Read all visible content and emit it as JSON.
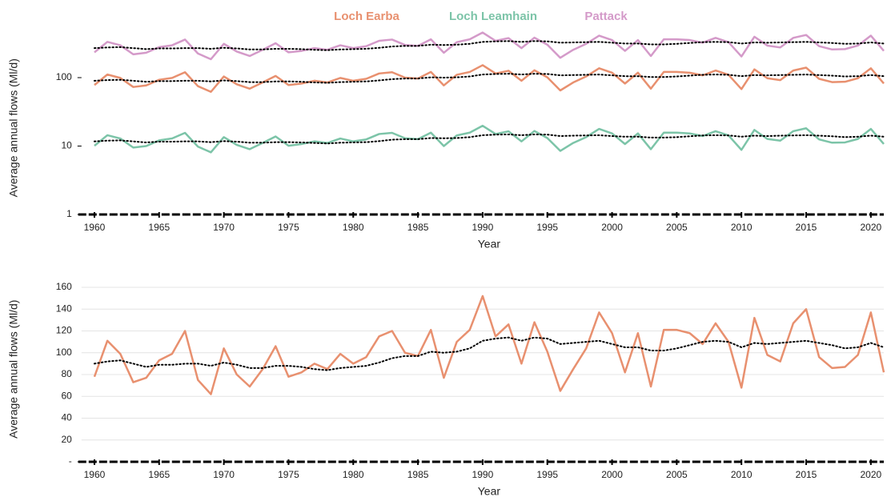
{
  "chart_data": [
    {
      "type": "line",
      "log_y": true,
      "y_label": "Average annual flows (Ml/d)",
      "x_label": "Year",
      "xlim": [
        1959,
        2021
      ],
      "xticks": [
        1960,
        1965,
        1970,
        1975,
        1980,
        1985,
        1990,
        1995,
        2000,
        2005,
        2010,
        2015,
        2020
      ],
      "ylim": [
        1,
        1000
      ],
      "yticks": [
        1,
        10,
        100
      ],
      "grid": false,
      "legend": "top",
      "trend_color": "#000000",
      "x": [
        1960,
        1961,
        1962,
        1963,
        1964,
        1965,
        1966,
        1967,
        1968,
        1969,
        1970,
        1971,
        1972,
        1973,
        1974,
        1975,
        1976,
        1977,
        1978,
        1979,
        1980,
        1981,
        1982,
        1983,
        1984,
        1985,
        1986,
        1987,
        1988,
        1989,
        1990,
        1991,
        1992,
        1993,
        1994,
        1995,
        1996,
        1997,
        1998,
        1999,
        2000,
        2001,
        2002,
        2003,
        2004,
        2005,
        2006,
        2007,
        2008,
        2009,
        2010,
        2011,
        2012,
        2013,
        2014,
        2015,
        2016,
        2017,
        2018,
        2019,
        2020,
        2021
      ],
      "series": [
        {
          "name": "Loch Earba",
          "color": "#e8906f",
          "values": [
            78,
            111,
            99,
            73,
            77,
            93,
            99,
            120,
            75,
            62,
            104,
            80,
            69,
            85,
            106,
            78,
            82,
            90,
            85,
            99,
            90,
            96,
            115,
            120,
            100,
            97,
            121,
            77,
            110,
            121,
            152,
            115,
            126,
            90,
            128,
            101,
            65,
            85,
            104,
            137,
            118,
            82,
            118,
            69,
            121,
            121,
            118,
            108,
            127,
            110,
            68,
            132,
            98,
            92,
            127,
            140,
            96,
            86,
            87,
            98,
            137,
            82
          ],
          "trend": [
            90,
            92,
            93,
            90,
            87,
            89,
            89,
            90,
            90,
            88,
            91,
            89,
            86,
            86,
            88,
            88,
            87,
            85,
            84,
            86,
            87,
            88,
            91,
            95,
            97,
            97,
            101,
            100,
            101,
            104,
            111,
            113,
            114,
            111,
            114,
            113,
            108,
            109,
            110,
            111,
            108,
            105,
            105,
            102,
            102,
            104,
            107,
            110,
            111,
            110,
            105,
            109,
            108,
            109,
            110,
            111,
            109,
            107,
            104,
            105,
            109,
            105
          ]
        },
        {
          "name": "Loch Leamhain",
          "color": "#7cc4a8",
          "values": [
            10.1,
            14.4,
            12.9,
            9.5,
            10.0,
            12.1,
            12.9,
            15.6,
            9.8,
            8.1,
            13.5,
            10.4,
            9.0,
            11.1,
            13.8,
            10.1,
            10.7,
            11.7,
            11.1,
            12.9,
            11.7,
            12.5,
            15.0,
            15.6,
            13.0,
            12.6,
            15.7,
            10.0,
            14.3,
            15.7,
            19.8,
            15.0,
            16.4,
            11.7,
            16.6,
            13.1,
            8.5,
            11.1,
            13.5,
            17.8,
            15.3,
            10.7,
            15.3,
            9.0,
            15.7,
            15.7,
            15.3,
            14.0,
            16.5,
            14.3,
            8.8,
            17.2,
            12.7,
            12.0,
            16.5,
            18.2,
            12.5,
            11.2,
            11.3,
            12.7,
            17.8,
            10.7
          ],
          "trend": [
            11.7,
            12.0,
            12.1,
            11.7,
            11.3,
            11.6,
            11.6,
            11.7,
            11.7,
            11.4,
            11.8,
            11.6,
            11.2,
            11.2,
            11.4,
            11.4,
            11.3,
            11.1,
            10.9,
            11.2,
            11.3,
            11.4,
            11.8,
            12.4,
            12.6,
            12.6,
            13.1,
            13.0,
            13.1,
            13.5,
            14.4,
            14.7,
            14.8,
            14.4,
            14.8,
            14.7,
            14.0,
            14.2,
            14.3,
            14.4,
            14.0,
            13.7,
            13.7,
            13.3,
            13.3,
            13.5,
            13.9,
            14.3,
            14.4,
            14.3,
            13.7,
            14.2,
            14.0,
            14.2,
            14.3,
            14.4,
            14.2,
            13.9,
            13.5,
            13.7,
            14.2,
            13.7
          ]
        },
        {
          "name": "Pattack",
          "color": "#d49ac9",
          "values": [
            234,
            333,
            297,
            219,
            231,
            279,
            297,
            360,
            225,
            186,
            312,
            240,
            207,
            255,
            318,
            234,
            246,
            270,
            255,
            297,
            270,
            288,
            345,
            360,
            300,
            291,
            363,
            231,
            330,
            363,
            456,
            345,
            378,
            270,
            384,
            303,
            195,
            255,
            312,
            411,
            354,
            246,
            354,
            207,
            363,
            363,
            354,
            324,
            381,
            330,
            204,
            396,
            294,
            276,
            381,
            420,
            288,
            258,
            261,
            294,
            411,
            246
          ],
          "trend": [
            270,
            276,
            279,
            270,
            261,
            267,
            267,
            270,
            270,
            264,
            273,
            267,
            258,
            258,
            264,
            264,
            261,
            255,
            252,
            258,
            261,
            264,
            273,
            285,
            291,
            291,
            303,
            300,
            303,
            312,
            333,
            339,
            342,
            333,
            342,
            339,
            324,
            327,
            330,
            333,
            324,
            315,
            315,
            306,
            306,
            312,
            321,
            330,
            333,
            330,
            315,
            327,
            324,
            327,
            330,
            333,
            327,
            321,
            312,
            315,
            327,
            315
          ]
        }
      ]
    },
    {
      "type": "line",
      "log_y": false,
      "y_label": "Average annual flows (Ml/d)",
      "x_label": "Year",
      "xlim": [
        1959,
        2021
      ],
      "xticks": [
        1960,
        1965,
        1970,
        1975,
        1980,
        1985,
        1990,
        1995,
        2000,
        2005,
        2010,
        2015,
        2020
      ],
      "ylim": [
        0,
        170
      ],
      "yticks": [
        {
          "value": 0,
          "label": "-"
        },
        20,
        40,
        60,
        80,
        100,
        120,
        140,
        160
      ],
      "grid": true,
      "trend_color": "#000000",
      "x": [
        1960,
        1961,
        1962,
        1963,
        1964,
        1965,
        1966,
        1967,
        1968,
        1969,
        1970,
        1971,
        1972,
        1973,
        1974,
        1975,
        1976,
        1977,
        1978,
        1979,
        1980,
        1981,
        1982,
        1983,
        1984,
        1985,
        1986,
        1987,
        1988,
        1989,
        1990,
        1991,
        1992,
        1993,
        1994,
        1995,
        1996,
        1997,
        1998,
        1999,
        2000,
        2001,
        2002,
        2003,
        2004,
        2005,
        2006,
        2007,
        2008,
        2009,
        2010,
        2011,
        2012,
        2013,
        2014,
        2015,
        2016,
        2017,
        2018,
        2019,
        2020,
        2021
      ],
      "series": [
        {
          "color": "#e8906f",
          "values": [
            78,
            111,
            99,
            73,
            77,
            93,
            99,
            120,
            75,
            62,
            104,
            80,
            69,
            85,
            106,
            78,
            82,
            90,
            85,
            99,
            90,
            96,
            115,
            120,
            100,
            97,
            121,
            77,
            110,
            121,
            152,
            115,
            126,
            90,
            128,
            101,
            65,
            85,
            104,
            137,
            118,
            82,
            118,
            69,
            121,
            121,
            118,
            108,
            127,
            110,
            68,
            132,
            98,
            92,
            127,
            140,
            96,
            86,
            87,
            98,
            137,
            82
          ],
          "trend": [
            90,
            92,
            93,
            90,
            87,
            89,
            89,
            90,
            90,
            88,
            91,
            89,
            86,
            86,
            88,
            88,
            87,
            85,
            84,
            86,
            87,
            88,
            91,
            95,
            97,
            97,
            101,
            100,
            101,
            104,
            111,
            113,
            114,
            111,
            114,
            113,
            108,
            109,
            110,
            111,
            108,
            105,
            105,
            102,
            102,
            104,
            107,
            110,
            111,
            110,
            105,
            109,
            108,
            109,
            110,
            111,
            109,
            107,
            104,
            105,
            109,
            105
          ]
        }
      ]
    }
  ]
}
